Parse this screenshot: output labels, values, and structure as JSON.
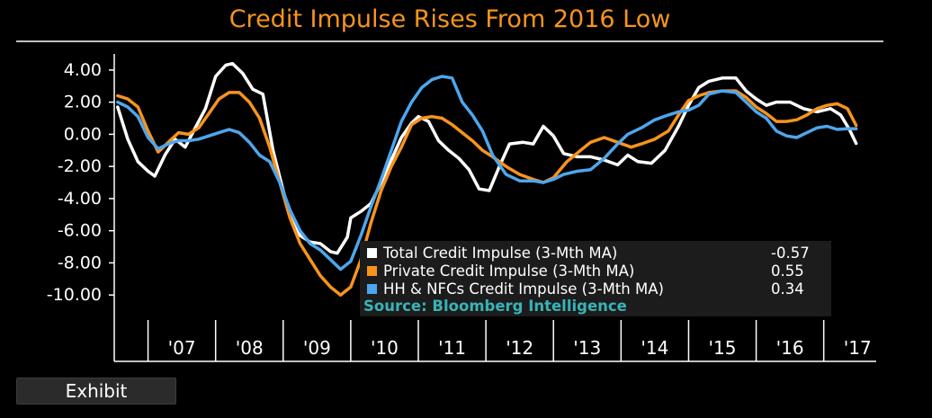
{
  "colors": {
    "background": "#000000",
    "title": "#f7941d",
    "total": "#ffffff",
    "private": "#f7941d",
    "hh_nfc": "#4ea6ec",
    "source": "#37b4b8",
    "legend_bg": "#1c1c1c"
  },
  "exhibit_button": {
    "label": "Exhibit"
  },
  "chart_data": {
    "type": "line",
    "title": "Credit Impulse Rises From 2016 Low",
    "xlabel": "",
    "ylabel": "",
    "ylim": [
      -11.5,
      5.0
    ],
    "xlim": [
      2006.5,
      2017.75
    ],
    "yticks": [
      4.0,
      2.0,
      0.0,
      -2.0,
      -4.0,
      -6.0,
      -8.0,
      -10.0
    ],
    "ytick_labels": [
      "4.00",
      "2.00",
      "0.00",
      "-2.00",
      "-4.00",
      "-6.00",
      "-8.00",
      "-10.00"
    ],
    "xtick_labels": [
      "'07",
      "'08",
      "'09",
      "'10",
      "'11",
      "'12",
      "'13",
      "'14",
      "'15",
      "'16",
      "'17"
    ],
    "xtick_positions": [
      2007.5,
      2008.5,
      2009.5,
      2010.5,
      2011.5,
      2012.5,
      2013.5,
      2014.5,
      2015.5,
      2016.5,
      2017.5
    ],
    "grid": false,
    "legend_position": "bottom-right",
    "source": "Source: Bloomberg Intelligence",
    "series": [
      {
        "name": "Total Credit Impulse (3-Mth MA)",
        "last_value": "-0.57",
        "color": "#ffffff",
        "points": [
          [
            2006.55,
            1.7
          ],
          [
            2006.7,
            -0.3
          ],
          [
            2006.85,
            -1.7
          ],
          [
            2007.0,
            -2.3
          ],
          [
            2007.1,
            -2.6
          ],
          [
            2007.25,
            -1.3
          ],
          [
            2007.4,
            -0.3
          ],
          [
            2007.55,
            -0.8
          ],
          [
            2007.7,
            0.4
          ],
          [
            2007.85,
            1.6
          ],
          [
            2008.0,
            3.6
          ],
          [
            2008.15,
            4.3
          ],
          [
            2008.25,
            4.4
          ],
          [
            2008.4,
            3.8
          ],
          [
            2008.55,
            2.8
          ],
          [
            2008.7,
            2.5
          ],
          [
            2008.85,
            -1.0
          ],
          [
            2009.0,
            -3.5
          ],
          [
            2009.1,
            -5.0
          ],
          [
            2009.25,
            -6.3
          ],
          [
            2009.4,
            -6.7
          ],
          [
            2009.55,
            -6.8
          ],
          [
            2009.7,
            -7.3
          ],
          [
            2009.8,
            -7.4
          ],
          [
            2009.95,
            -6.4
          ],
          [
            2010.0,
            -5.2
          ],
          [
            2010.15,
            -4.8
          ],
          [
            2010.3,
            -4.3
          ],
          [
            2010.45,
            -3.0
          ],
          [
            2010.6,
            -1.6
          ],
          [
            2010.75,
            -0.2
          ],
          [
            2010.9,
            0.7
          ],
          [
            2011.0,
            1.1
          ],
          [
            2011.15,
            0.8
          ],
          [
            2011.3,
            -0.4
          ],
          [
            2011.45,
            -1.0
          ],
          [
            2011.6,
            -1.5
          ],
          [
            2011.75,
            -2.2
          ],
          [
            2011.9,
            -3.4
          ],
          [
            2012.05,
            -3.5
          ],
          [
            2012.2,
            -2.0
          ],
          [
            2012.35,
            -0.6
          ],
          [
            2012.55,
            -0.5
          ],
          [
            2012.7,
            -0.6
          ],
          [
            2012.85,
            0.5
          ],
          [
            2013.0,
            -0.1
          ],
          [
            2013.15,
            -1.2
          ],
          [
            2013.35,
            -1.4
          ],
          [
            2013.55,
            -1.4
          ],
          [
            2013.75,
            -1.6
          ],
          [
            2013.95,
            -1.9
          ],
          [
            2014.1,
            -1.3
          ],
          [
            2014.25,
            -1.7
          ],
          [
            2014.45,
            -1.8
          ],
          [
            2014.65,
            -1.0
          ],
          [
            2014.85,
            0.5
          ],
          [
            2015.0,
            1.8
          ],
          [
            2015.15,
            2.9
          ],
          [
            2015.3,
            3.3
          ],
          [
            2015.5,
            3.5
          ],
          [
            2015.7,
            3.5
          ],
          [
            2015.85,
            2.7
          ],
          [
            2016.0,
            2.2
          ],
          [
            2016.15,
            1.8
          ],
          [
            2016.3,
            2.0
          ],
          [
            2016.5,
            2.0
          ],
          [
            2016.7,
            1.6
          ],
          [
            2016.9,
            1.4
          ],
          [
            2017.1,
            1.6
          ],
          [
            2017.25,
            1.2
          ],
          [
            2017.38,
            0.3
          ],
          [
            2017.48,
            -0.57
          ]
        ]
      },
      {
        "name": "Private Credit Impulse (3-Mth MA)",
        "last_value": "0.55",
        "color": "#f7941d",
        "points": [
          [
            2006.55,
            2.4
          ],
          [
            2006.7,
            2.2
          ],
          [
            2006.85,
            1.7
          ],
          [
            2007.0,
            0.2
          ],
          [
            2007.15,
            -1.1
          ],
          [
            2007.3,
            -0.5
          ],
          [
            2007.45,
            0.1
          ],
          [
            2007.6,
            0.0
          ],
          [
            2007.75,
            0.4
          ],
          [
            2007.9,
            1.3
          ],
          [
            2008.05,
            2.2
          ],
          [
            2008.2,
            2.6
          ],
          [
            2008.35,
            2.6
          ],
          [
            2008.5,
            2.0
          ],
          [
            2008.65,
            1.0
          ],
          [
            2008.8,
            -0.8
          ],
          [
            2008.95,
            -3.0
          ],
          [
            2009.1,
            -5.2
          ],
          [
            2009.25,
            -6.8
          ],
          [
            2009.4,
            -7.8
          ],
          [
            2009.55,
            -8.8
          ],
          [
            2009.7,
            -9.5
          ],
          [
            2009.85,
            -10.0
          ],
          [
            2010.0,
            -9.5
          ],
          [
            2010.15,
            -7.8
          ],
          [
            2010.3,
            -5.5
          ],
          [
            2010.45,
            -3.5
          ],
          [
            2010.6,
            -2.0
          ],
          [
            2010.75,
            -0.8
          ],
          [
            2010.9,
            0.6
          ],
          [
            2011.05,
            1.0
          ],
          [
            2011.2,
            1.1
          ],
          [
            2011.35,
            1.0
          ],
          [
            2011.5,
            0.6
          ],
          [
            2011.65,
            0.1
          ],
          [
            2011.8,
            -0.4
          ],
          [
            2011.95,
            -1.0
          ],
          [
            2012.1,
            -1.4
          ],
          [
            2012.3,
            -2.0
          ],
          [
            2012.5,
            -2.5
          ],
          [
            2012.7,
            -2.8
          ],
          [
            2012.85,
            -3.0
          ],
          [
            2013.0,
            -2.7
          ],
          [
            2013.2,
            -1.7
          ],
          [
            2013.4,
            -1.0
          ],
          [
            2013.55,
            -0.5
          ],
          [
            2013.75,
            -0.2
          ],
          [
            2013.95,
            -0.5
          ],
          [
            2014.15,
            -0.8
          ],
          [
            2014.3,
            -0.6
          ],
          [
            2014.5,
            -0.3
          ],
          [
            2014.7,
            0.2
          ],
          [
            2014.85,
            1.2
          ],
          [
            2015.0,
            2.1
          ],
          [
            2015.15,
            2.4
          ],
          [
            2015.3,
            2.6
          ],
          [
            2015.5,
            2.7
          ],
          [
            2015.7,
            2.7
          ],
          [
            2015.85,
            2.3
          ],
          [
            2016.0,
            1.7
          ],
          [
            2016.15,
            1.3
          ],
          [
            2016.3,
            0.8
          ],
          [
            2016.45,
            0.8
          ],
          [
            2016.6,
            0.9
          ],
          [
            2016.75,
            1.2
          ],
          [
            2016.9,
            1.6
          ],
          [
            2017.05,
            1.8
          ],
          [
            2017.2,
            1.9
          ],
          [
            2017.35,
            1.6
          ],
          [
            2017.48,
            0.55
          ]
        ]
      },
      {
        "name": "HH & NFCs Credit Impulse (3-Mth MA)",
        "last_value": "0.34",
        "color": "#4ea6ec",
        "points": [
          [
            2006.55,
            2.0
          ],
          [
            2006.7,
            1.7
          ],
          [
            2006.85,
            1.1
          ],
          [
            2007.0,
            -0.2
          ],
          [
            2007.15,
            -0.9
          ],
          [
            2007.3,
            -0.6
          ],
          [
            2007.45,
            -0.4
          ],
          [
            2007.6,
            -0.4
          ],
          [
            2007.75,
            -0.3
          ],
          [
            2007.9,
            -0.1
          ],
          [
            2008.05,
            0.1
          ],
          [
            2008.2,
            0.3
          ],
          [
            2008.35,
            0.1
          ],
          [
            2008.5,
            -0.5
          ],
          [
            2008.65,
            -1.3
          ],
          [
            2008.8,
            -1.7
          ],
          [
            2008.95,
            -3.0
          ],
          [
            2009.1,
            -4.7
          ],
          [
            2009.25,
            -6.0
          ],
          [
            2009.4,
            -6.8
          ],
          [
            2009.55,
            -7.2
          ],
          [
            2009.7,
            -7.8
          ],
          [
            2009.85,
            -8.4
          ],
          [
            2010.0,
            -7.9
          ],
          [
            2010.15,
            -6.3
          ],
          [
            2010.3,
            -4.5
          ],
          [
            2010.45,
            -2.8
          ],
          [
            2010.6,
            -1.0
          ],
          [
            2010.75,
            0.8
          ],
          [
            2010.9,
            2.0
          ],
          [
            2011.05,
            2.9
          ],
          [
            2011.2,
            3.4
          ],
          [
            2011.35,
            3.6
          ],
          [
            2011.5,
            3.5
          ],
          [
            2011.65,
            2.0
          ],
          [
            2011.8,
            1.2
          ],
          [
            2011.95,
            0.2
          ],
          [
            2012.1,
            -1.3
          ],
          [
            2012.3,
            -2.5
          ],
          [
            2012.5,
            -2.9
          ],
          [
            2012.7,
            -2.9
          ],
          [
            2012.85,
            -3.0
          ],
          [
            2013.0,
            -2.8
          ],
          [
            2013.15,
            -2.5
          ],
          [
            2013.35,
            -2.3
          ],
          [
            2013.55,
            -2.2
          ],
          [
            2013.75,
            -1.5
          ],
          [
            2013.95,
            -0.6
          ],
          [
            2014.1,
            0.0
          ],
          [
            2014.3,
            0.4
          ],
          [
            2014.5,
            0.9
          ],
          [
            2014.7,
            1.2
          ],
          [
            2014.85,
            1.4
          ],
          [
            2015.0,
            1.5
          ],
          [
            2015.15,
            1.8
          ],
          [
            2015.3,
            2.5
          ],
          [
            2015.5,
            2.7
          ],
          [
            2015.7,
            2.6
          ],
          [
            2015.85,
            2.0
          ],
          [
            2016.0,
            1.4
          ],
          [
            2016.15,
            1.0
          ],
          [
            2016.3,
            0.2
          ],
          [
            2016.45,
            -0.1
          ],
          [
            2016.6,
            -0.2
          ],
          [
            2016.75,
            0.1
          ],
          [
            2016.9,
            0.4
          ],
          [
            2017.05,
            0.5
          ],
          [
            2017.2,
            0.3
          ],
          [
            2017.35,
            0.35
          ],
          [
            2017.48,
            0.34
          ]
        ]
      }
    ]
  }
}
